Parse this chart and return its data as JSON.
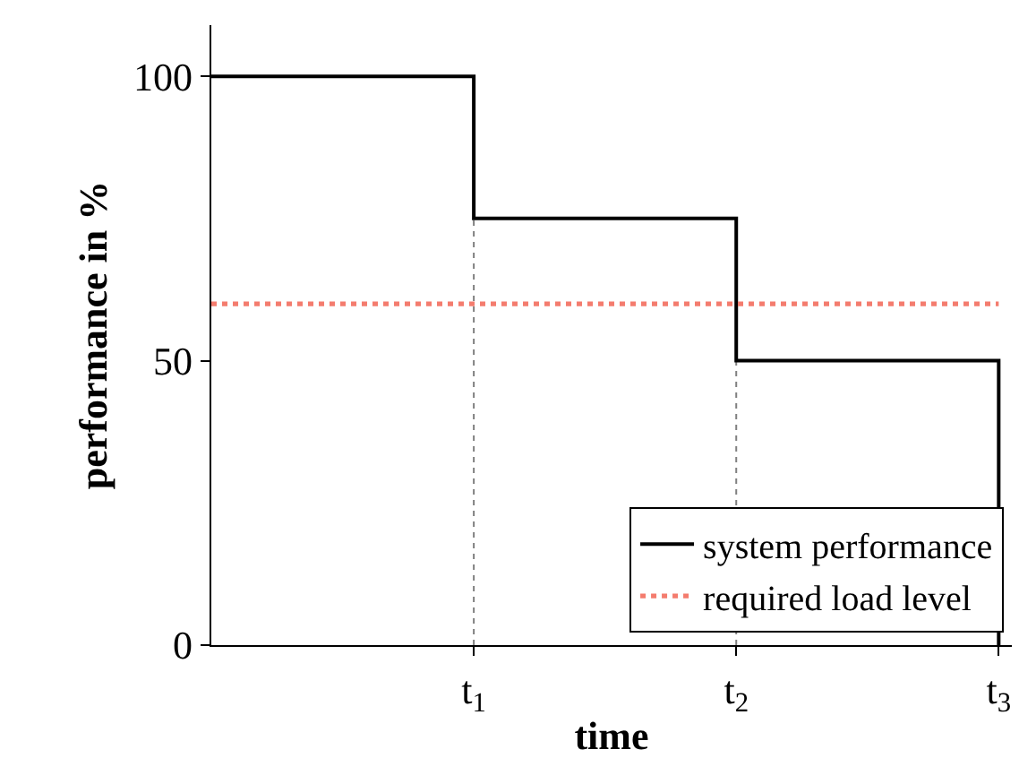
{
  "chart_data": {
    "type": "step",
    "xlabel": "time",
    "ylabel": "performance in %",
    "x": [
      0,
      1,
      2,
      3,
      3
    ],
    "series": [
      {
        "name": "system performance",
        "color": "#000000",
        "values": [
          100,
          75,
          50,
          50,
          0
        ],
        "line_style": "solid"
      },
      {
        "name": "required load level",
        "type": "line",
        "color": "#f47c6e",
        "x": [
          0,
          3
        ],
        "values": [
          60,
          60
        ],
        "line_style": "dotted"
      }
    ],
    "xlim": [
      0,
      3.05
    ],
    "xticks": [
      {
        "value": 1,
        "label": "t$_{1}$"
      },
      {
        "value": 2,
        "label": "t$_{2}$"
      },
      {
        "value": 3,
        "label": "t$_{3}$"
      }
    ],
    "ylim": [
      0,
      109
    ],
    "yticks": [
      0,
      50,
      100
    ],
    "ref_lines": [
      {
        "axis": "x",
        "value": 1,
        "color": "#808080",
        "line_style": "dotted"
      },
      {
        "axis": "x",
        "value": 2,
        "color": "#808080",
        "line_style": "dotted"
      }
    ],
    "grid": false,
    "legend": "bottom right",
    "marker": "none"
  }
}
